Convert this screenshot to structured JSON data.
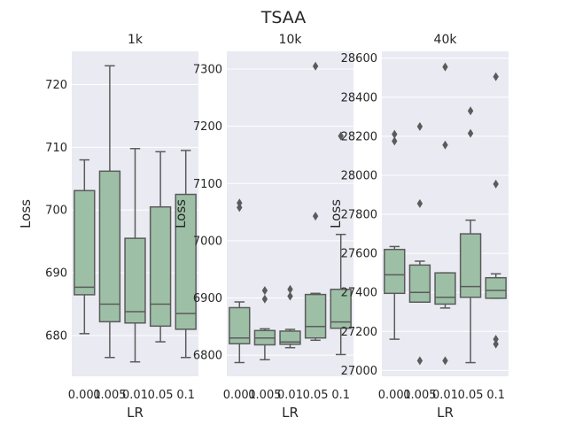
{
  "title": "TSAA",
  "colors": {
    "panel_bg": "#eaeaf2",
    "grid": "#ffffff",
    "box_fill": "#9dbfa6",
    "box_line": "#5b5b5b",
    "text": "#262626"
  },
  "chart_data": [
    {
      "type": "box",
      "title": "1k",
      "xlabel": "LR",
      "ylabel": "Loss",
      "categories": [
        "0.001",
        "0.005",
        "0.01",
        "0.05",
        "0.1"
      ],
      "ylim": [
        673.5,
        725.3
      ],
      "yticks": [
        680,
        690,
        700,
        710,
        720
      ],
      "boxes": [
        {
          "whisker_low": 680.3,
          "q1": 686.5,
          "median": 687.7,
          "q3": 703.1,
          "whisker_high": 708.0,
          "outliers": []
        },
        {
          "whisker_low": 676.5,
          "q1": 682.2,
          "median": 685.0,
          "q3": 706.2,
          "whisker_high": 723.0,
          "outliers": []
        },
        {
          "whisker_low": 675.8,
          "q1": 682.0,
          "median": 683.8,
          "q3": 695.5,
          "whisker_high": 709.8,
          "outliers": []
        },
        {
          "whisker_low": 679.0,
          "q1": 681.5,
          "median": 685.0,
          "q3": 700.5,
          "whisker_high": 709.3,
          "outliers": []
        },
        {
          "whisker_low": 676.5,
          "q1": 681.0,
          "median": 683.5,
          "q3": 702.5,
          "whisker_high": 709.5,
          "outliers": []
        }
      ]
    },
    {
      "type": "box",
      "title": "10k",
      "xlabel": "LR",
      "ylabel": "Loss",
      "categories": [
        "0.001",
        "0.005",
        "0.01",
        "0.05",
        "0.1"
      ],
      "ylim": [
        6763,
        7331
      ],
      "yticks": [
        6800,
        6900,
        7000,
        7100,
        7200,
        7300
      ],
      "boxes": [
        {
          "whisker_low": 6787,
          "q1": 6820,
          "median": 6830,
          "q3": 6883,
          "whisker_high": 6893,
          "outliers": [
            7058,
            7066
          ]
        },
        {
          "whisker_low": 6792,
          "q1": 6818,
          "median": 6830,
          "q3": 6843,
          "whisker_high": 6846,
          "outliers": [
            6898,
            6913
          ]
        },
        {
          "whisker_low": 6813,
          "q1": 6819,
          "median": 6823,
          "q3": 6842,
          "whisker_high": 6845,
          "outliers": [
            6903,
            6915
          ]
        },
        {
          "whisker_low": 6826,
          "q1": 6830,
          "median": 6850,
          "q3": 6906,
          "whisker_high": 6908,
          "outliers": [
            7043,
            7305
          ]
        },
        {
          "whisker_low": 6801,
          "q1": 6847,
          "median": 6858,
          "q3": 6915,
          "whisker_high": 7011,
          "outliers": [
            7183
          ]
        }
      ]
    },
    {
      "type": "box",
      "title": "40k",
      "xlabel": "LR",
      "ylabel": "Loss",
      "categories": [
        "0.001",
        "0.005",
        "0.01",
        "0.05",
        "0.1"
      ],
      "ylim": [
        26970,
        28635
      ],
      "yticks": [
        27000,
        27200,
        27400,
        27600,
        27800,
        28000,
        28200,
        28400,
        28600
      ],
      "boxes": [
        {
          "whisker_low": 27160,
          "q1": 27395,
          "median": 27490,
          "q3": 27620,
          "whisker_high": 27635,
          "outliers": [
            28175,
            28210
          ]
        },
        {
          "whisker_low": 27350,
          "q1": 27350,
          "median": 27400,
          "q3": 27540,
          "whisker_high": 27560,
          "outliers": [
            27050,
            27855,
            28250
          ]
        },
        {
          "whisker_low": 27320,
          "q1": 27340,
          "median": 27375,
          "q3": 27500,
          "whisker_high": 27500,
          "outliers": [
            27050,
            28155,
            28555
          ]
        },
        {
          "whisker_low": 27040,
          "q1": 27375,
          "median": 27430,
          "q3": 27700,
          "whisker_high": 27770,
          "outliers": [
            28215,
            28330
          ]
        },
        {
          "whisker_low": 27370,
          "q1": 27370,
          "median": 27410,
          "q3": 27475,
          "whisker_high": 27495,
          "outliers": [
            27135,
            27160,
            27955,
            28505
          ]
        }
      ]
    }
  ]
}
